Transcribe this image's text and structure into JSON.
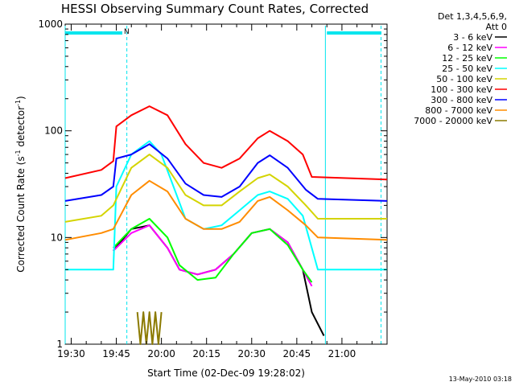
{
  "chart_data": {
    "type": "line",
    "title": "HESSI Observing Summary Count Rates, Corrected",
    "xlabel": "Start Time (02-Dec-09 19:28:02)",
    "ylabel_main": "Corrected Count Rate (s",
    "ylabel_sup1": "-1",
    "ylabel_mid": " detector",
    "ylabel_sup2": "-1",
    "ylabel_end": ")",
    "yscale": "log",
    "ylim": [
      1,
      1000
    ],
    "xlim_minutes": [
      -2,
      105
    ],
    "yticks": [
      {
        "value": 1,
        "label": "1"
      },
      {
        "value": 10,
        "label": "10"
      },
      {
        "value": 100,
        "label": "100"
      },
      {
        "value": 1000,
        "label": "1000"
      }
    ],
    "xticks": [
      {
        "t": 0,
        "label": "19:30"
      },
      {
        "t": 15,
        "label": "19:45"
      },
      {
        "t": 30,
        "label": "20:00"
      },
      {
        "t": 45,
        "label": "20:15"
      },
      {
        "t": 60,
        "label": "20:30"
      },
      {
        "t": 75,
        "label": "20:45"
      },
      {
        "t": 90,
        "label": "21:00"
      }
    ],
    "legend_header": [
      "Det 1,3,4,5,6,9,",
      "Att 0"
    ],
    "legend_placement": "right",
    "flag_label": "N",
    "flag_color": "#00e5ee",
    "flag_bars": [
      [
        -2,
        17
      ],
      [
        85,
        103
      ]
    ],
    "night_boundaries": [
      [
        -2,
        "solid"
      ],
      [
        18.5,
        "dashed"
      ],
      [
        84.5,
        "solid"
      ],
      [
        103,
        "dashed"
      ]
    ],
    "series": [
      {
        "name": "3 - 6 keV",
        "color": "#000000",
        "points": [
          [
            14,
            7.5
          ],
          [
            20,
            12
          ],
          [
            26,
            13
          ],
          [
            32,
            8
          ],
          [
            36,
            5
          ],
          [
            42,
            4.5
          ],
          [
            48,
            5
          ],
          [
            54,
            7
          ],
          [
            60,
            11
          ],
          [
            66,
            12
          ],
          [
            72,
            9
          ],
          [
            77,
            5
          ],
          [
            80,
            2
          ],
          [
            84,
            1.2
          ]
        ]
      },
      {
        "name": "6 - 12 keV",
        "color": "#ff00ff",
        "points": [
          [
            14,
            7.5
          ],
          [
            20,
            11
          ],
          [
            26,
            13
          ],
          [
            32,
            8
          ],
          [
            36,
            5
          ],
          [
            42,
            4.5
          ],
          [
            48,
            5
          ],
          [
            54,
            7
          ],
          [
            60,
            11
          ],
          [
            66,
            12
          ],
          [
            72,
            9
          ],
          [
            77,
            5
          ],
          [
            80,
            3.5
          ]
        ]
      },
      {
        "name": "12 - 25 keV",
        "color": "#00ff00",
        "points": [
          [
            14,
            8
          ],
          [
            20,
            12
          ],
          [
            26,
            15
          ],
          [
            32,
            10
          ],
          [
            36,
            5.5
          ],
          [
            42,
            4
          ],
          [
            48,
            4.2
          ],
          [
            54,
            7
          ],
          [
            60,
            11
          ],
          [
            66,
            12
          ],
          [
            72,
            8.5
          ],
          [
            77,
            5
          ],
          [
            80,
            3.8
          ]
        ]
      },
      {
        "name": "25 - 50 keV",
        "color": "#00ffff",
        "points": [
          [
            -2,
            5
          ],
          [
            14,
            5
          ],
          [
            15,
            30
          ],
          [
            20,
            60
          ],
          [
            26,
            80
          ],
          [
            30,
            60
          ],
          [
            34,
            30
          ],
          [
            38,
            15
          ],
          [
            44,
            12
          ],
          [
            50,
            13
          ],
          [
            56,
            18
          ],
          [
            62,
            25
          ],
          [
            66,
            27
          ],
          [
            72,
            23
          ],
          [
            77,
            16
          ],
          [
            82,
            5
          ],
          [
            105,
            5
          ]
        ]
      },
      {
        "name": "50 - 100 keV",
        "color": "#d4d400",
        "points": [
          [
            -2,
            14
          ],
          [
            10,
            16
          ],
          [
            14,
            20
          ],
          [
            20,
            45
          ],
          [
            26,
            60
          ],
          [
            32,
            45
          ],
          [
            38,
            25
          ],
          [
            44,
            20
          ],
          [
            50,
            20
          ],
          [
            56,
            27
          ],
          [
            62,
            36
          ],
          [
            66,
            39
          ],
          [
            72,
            30
          ],
          [
            78,
            20
          ],
          [
            82,
            15
          ],
          [
            105,
            15
          ]
        ]
      },
      {
        "name": "100 - 300 keV",
        "color": "#ff0000",
        "points": [
          [
            -2,
            36
          ],
          [
            10,
            43
          ],
          [
            14,
            52
          ],
          [
            15,
            110
          ],
          [
            20,
            140
          ],
          [
            26,
            170
          ],
          [
            32,
            140
          ],
          [
            38,
            75
          ],
          [
            44,
            50
          ],
          [
            50,
            45
          ],
          [
            56,
            55
          ],
          [
            62,
            85
          ],
          [
            66,
            100
          ],
          [
            72,
            80
          ],
          [
            77,
            60
          ],
          [
            80,
            37
          ],
          [
            105,
            35
          ]
        ]
      },
      {
        "name": "300 - 800 keV",
        "color": "#0000ff",
        "points": [
          [
            -2,
            22
          ],
          [
            10,
            25
          ],
          [
            14,
            30
          ],
          [
            15,
            55
          ],
          [
            20,
            60
          ],
          [
            26,
            75
          ],
          [
            32,
            55
          ],
          [
            38,
            32
          ],
          [
            44,
            25
          ],
          [
            50,
            24
          ],
          [
            56,
            30
          ],
          [
            62,
            50
          ],
          [
            66,
            59
          ],
          [
            72,
            45
          ],
          [
            78,
            28
          ],
          [
            82,
            23
          ],
          [
            105,
            22
          ]
        ]
      },
      {
        "name": "800 - 7000 keV",
        "color": "#ff8c00",
        "points": [
          [
            -2,
            9.5
          ],
          [
            10,
            11
          ],
          [
            14,
            12
          ],
          [
            20,
            25
          ],
          [
            26,
            34
          ],
          [
            32,
            27
          ],
          [
            38,
            15
          ],
          [
            44,
            12
          ],
          [
            50,
            12
          ],
          [
            56,
            14
          ],
          [
            62,
            22
          ],
          [
            66,
            24
          ],
          [
            72,
            18
          ],
          [
            78,
            13
          ],
          [
            82,
            10
          ],
          [
            105,
            9.5
          ]
        ]
      },
      {
        "name": "7000 - 20000 keV",
        "color": "#8b7a00",
        "points": [
          [
            22,
            2
          ],
          [
            23,
            1
          ],
          [
            24,
            2
          ],
          [
            25,
            1
          ],
          [
            26,
            2
          ],
          [
            27,
            1
          ],
          [
            28,
            2
          ],
          [
            29,
            1
          ],
          [
            30,
            2
          ]
        ]
      }
    ],
    "footer_timestamp": "13-May-2010 03:18"
  }
}
